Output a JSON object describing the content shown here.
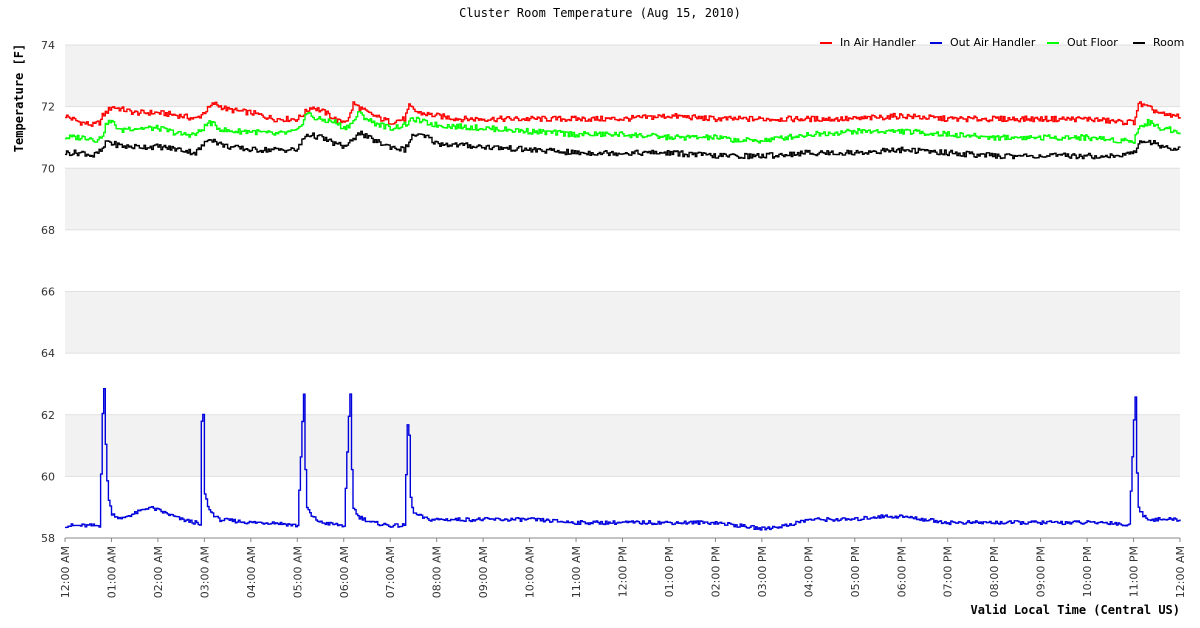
{
  "chart_data": {
    "type": "line",
    "title": "Cluster Room Temperature (Aug 15, 2010)",
    "xlabel": "Valid Local Time (Central US)",
    "ylabel": "Temperature [F]",
    "ylim": [
      58,
      74
    ],
    "yticks": [
      "58",
      "60",
      "62",
      "64",
      "66",
      "68",
      "70",
      "72",
      "74"
    ],
    "xlim_hours": [
      0,
      24
    ],
    "xticks": [
      "12:00 AM",
      "01:00 AM",
      "02:00 AM",
      "03:00 AM",
      "04:00 AM",
      "05:00 AM",
      "06:00 AM",
      "07:00 AM",
      "08:00 AM",
      "09:00 AM",
      "10:00 AM",
      "11:00 AM",
      "12:00 PM",
      "01:00 PM",
      "02:00 PM",
      "03:00 PM",
      "04:00 PM",
      "05:00 PM",
      "06:00 PM",
      "07:00 PM",
      "08:00 PM",
      "09:00 PM",
      "10:00 PM",
      "11:00 PM",
      "12:00 AM"
    ],
    "legend": "top-right",
    "series": [
      {
        "name": "In Air Handler",
        "color": "#ff0000",
        "x": [
          0,
          0.3,
          0.6,
          0.75,
          0.8,
          1.0,
          1.5,
          2.0,
          2.5,
          2.8,
          2.9,
          3.2,
          3.5,
          4.0,
          4.5,
          4.9,
          5.0,
          5.3,
          5.6,
          5.9,
          6.1,
          6.2,
          6.5,
          6.8,
          7.0,
          7.3,
          7.4,
          7.6,
          8.0,
          8.5,
          9.0,
          10.0,
          11.0,
          12.0,
          13.0,
          14.0,
          15.0,
          16.0,
          17.0,
          18.0,
          19.0,
          20.0,
          21.0,
          22.0,
          22.7,
          23.0,
          23.1,
          23.4,
          23.7,
          24.0
        ],
        "values": [
          71.7,
          71.5,
          71.4,
          71.5,
          71.7,
          72.0,
          71.8,
          71.8,
          71.7,
          71.6,
          71.7,
          72.1,
          71.9,
          71.8,
          71.6,
          71.6,
          71.6,
          72.0,
          71.8,
          71.5,
          71.6,
          72.1,
          71.8,
          71.6,
          71.5,
          71.6,
          72.0,
          71.8,
          71.7,
          71.6,
          71.6,
          71.6,
          71.6,
          71.6,
          71.7,
          71.6,
          71.6,
          71.6,
          71.6,
          71.7,
          71.6,
          71.6,
          71.6,
          71.6,
          71.5,
          71.5,
          72.1,
          71.9,
          71.7,
          71.7
        ]
      },
      {
        "name": "Out Air Handler",
        "color": "#0000dd",
        "x": [
          0,
          0.5,
          0.75,
          0.78,
          0.82,
          0.84,
          0.87,
          0.92,
          1.0,
          1.2,
          1.3,
          1.5,
          1.8,
          2.0,
          2.5,
          2.8,
          2.9,
          2.93,
          2.96,
          2.98,
          3.0,
          3.1,
          3.3,
          4.0,
          4.5,
          5.0,
          5.1,
          5.13,
          5.16,
          5.18,
          5.2,
          5.3,
          5.5,
          6.0,
          6.1,
          6.13,
          6.16,
          6.18,
          6.2,
          6.3,
          6.6,
          7.0,
          7.3,
          7.36,
          7.39,
          7.41,
          7.43,
          7.5,
          7.8,
          8.0,
          9.0,
          10.0,
          11.0,
          12.0,
          13.0,
          14.0,
          14.5,
          15.0,
          15.5,
          16.0,
          16.2,
          17.0,
          17.5,
          18.0,
          18.5,
          19.0,
          20.0,
          20.5,
          21.0,
          22.0,
          22.5,
          22.9,
          23.0,
          23.03,
          23.06,
          23.08,
          23.1,
          23.2,
          23.4,
          23.7,
          24.0
        ],
        "values": [
          58.4,
          58.4,
          58.4,
          61.5,
          62.6,
          62.9,
          60.8,
          59.3,
          58.8,
          58.6,
          58.7,
          58.8,
          59.0,
          58.9,
          58.6,
          58.5,
          58.4,
          61.6,
          62.8,
          60.5,
          59.4,
          58.9,
          58.6,
          58.5,
          58.5,
          58.4,
          61.8,
          62.9,
          60.5,
          59.5,
          59.0,
          58.7,
          58.5,
          58.4,
          61.9,
          62.9,
          60.6,
          59.5,
          59.0,
          58.7,
          58.5,
          58.4,
          58.4,
          61.4,
          62.5,
          60.2,
          59.3,
          58.8,
          58.6,
          58.6,
          58.6,
          58.6,
          58.5,
          58.5,
          58.5,
          58.5,
          58.4,
          58.3,
          58.4,
          58.6,
          58.6,
          58.6,
          58.7,
          58.7,
          58.6,
          58.5,
          58.5,
          58.5,
          58.5,
          58.5,
          58.5,
          58.4,
          61.8,
          62.9,
          60.5,
          59.5,
          59.0,
          58.7,
          58.6,
          58.6,
          58.6
        ]
      },
      {
        "name": "Out Floor",
        "color": "#00ff00",
        "x": [
          0,
          0.5,
          0.7,
          0.8,
          0.9,
          1.0,
          1.2,
          1.3,
          1.5,
          2.0,
          2.5,
          2.8,
          2.9,
          3.1,
          3.3,
          3.5,
          4.0,
          4.5,
          5.0,
          5.2,
          5.4,
          5.8,
          6.0,
          6.2,
          6.3,
          6.6,
          7.0,
          7.3,
          7.5,
          7.7,
          8.0,
          9.0,
          10.0,
          11.0,
          12.0,
          13.0,
          14.0,
          14.5,
          15.0,
          15.5,
          16.0,
          17.0,
          18.0,
          19.0,
          20.0,
          21.0,
          22.0,
          22.7,
          23.0,
          23.1,
          23.3,
          23.6,
          24.0
        ],
        "values": [
          71.0,
          71.0,
          70.9,
          71.1,
          71.5,
          71.5,
          71.2,
          71.3,
          71.3,
          71.3,
          71.1,
          71.1,
          71.2,
          71.5,
          71.3,
          71.2,
          71.2,
          71.1,
          71.2,
          71.8,
          71.6,
          71.5,
          71.3,
          71.5,
          71.8,
          71.5,
          71.3,
          71.4,
          71.6,
          71.5,
          71.4,
          71.3,
          71.2,
          71.1,
          71.1,
          71.0,
          71.0,
          70.9,
          70.9,
          71.0,
          71.1,
          71.2,
          71.2,
          71.1,
          71.0,
          71.0,
          71.0,
          70.9,
          70.9,
          71.3,
          71.5,
          71.3,
          71.2
        ]
      },
      {
        "name": "Room",
        "color": "#000000",
        "x": [
          0,
          0.4,
          0.6,
          0.8,
          0.9,
          1.0,
          1.3,
          1.5,
          2.0,
          2.5,
          2.8,
          3.0,
          3.1,
          3.3,
          3.5,
          4.0,
          4.5,
          5.0,
          5.1,
          5.2,
          5.5,
          5.8,
          6.0,
          6.2,
          6.3,
          6.5,
          6.8,
          7.0,
          7.3,
          7.5,
          7.8,
          8.0,
          9.0,
          10.0,
          11.0,
          12.0,
          13.0,
          14.0,
          15.0,
          16.0,
          17.0,
          18.0,
          19.0,
          20.0,
          21.0,
          22.0,
          22.7,
          23.0,
          23.1,
          23.3,
          23.6,
          24.0
        ],
        "values": [
          70.5,
          70.5,
          70.4,
          70.6,
          70.9,
          70.8,
          70.7,
          70.7,
          70.7,
          70.6,
          70.5,
          70.8,
          71.0,
          70.8,
          70.7,
          70.6,
          70.6,
          70.6,
          70.9,
          71.1,
          71.0,
          70.8,
          70.7,
          70.9,
          71.2,
          71.0,
          70.8,
          70.7,
          70.6,
          71.1,
          71.0,
          70.8,
          70.7,
          70.6,
          70.5,
          70.5,
          70.5,
          70.4,
          70.4,
          70.5,
          70.5,
          70.6,
          70.5,
          70.4,
          70.4,
          70.4,
          70.4,
          70.5,
          70.8,
          70.9,
          70.7,
          70.6
        ]
      }
    ]
  }
}
